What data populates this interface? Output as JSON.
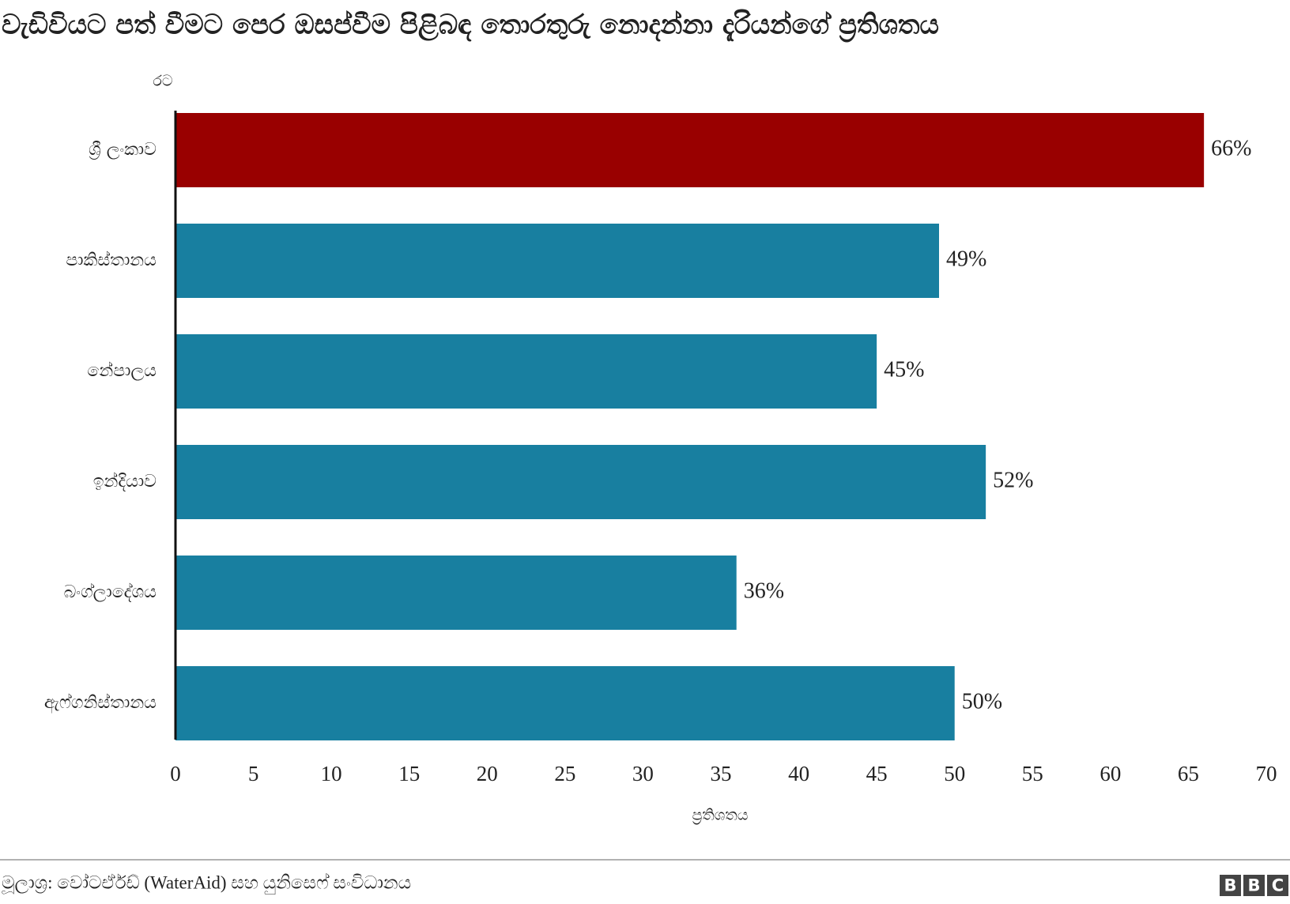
{
  "chart_data": {
    "type": "hbar",
    "title": "වැඩිවියට පත් වීමට පෙර ඔසප්වීම පිළිබඳ තොරතුරු නොදන්නා දැරියන්ගේ ප්‍රතිශතය",
    "y_label": "රට",
    "x_label": "ප්‍රතිශතය",
    "categories": [
      "ශ්‍රී ලංකාව",
      "පාකිස්තානය",
      "නේපාලය",
      "ඉන්දියාව",
      "බංග්ලාදේශය",
      "ඇෆ්ගනිස්තානය"
    ],
    "values": [
      66,
      49,
      45,
      52,
      36,
      50
    ],
    "value_labels": [
      "66%",
      "49%",
      "45%",
      "52%",
      "36%",
      "50%"
    ],
    "colors": [
      "#990000",
      "#187fa0",
      "#187fa0",
      "#187fa0",
      "#187fa0",
      "#187fa0"
    ],
    "xlim": [
      0,
      70
    ],
    "xticks": [
      0,
      5,
      10,
      15,
      20,
      25,
      30,
      35,
      40,
      45,
      50,
      55,
      60,
      65,
      70
    ],
    "grid": false,
    "source": "මූලාශ්‍ර: වෝටර්ඒඩ් (WaterAid) සහ යුනිසෙෆ් සංවිධානය",
    "logo": [
      "B",
      "B",
      "C"
    ]
  }
}
